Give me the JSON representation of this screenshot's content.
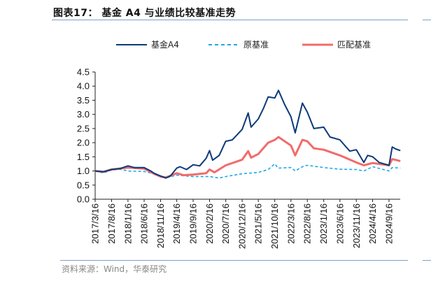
{
  "title": "图表17：  基金 A4 与业绩比较基准走势",
  "source": "资料来源：Wind，华泰研究",
  "chart_data": {
    "type": "line",
    "title": "",
    "xlabel": "",
    "ylabel": "",
    "ylim": [
      0,
      4.5
    ],
    "yticks": [
      "0.0",
      "0.5",
      "1.0",
      "1.5",
      "2.0",
      "2.5",
      "3.0",
      "3.5",
      "4.0",
      "4.5"
    ],
    "xticks": [
      "2017/3/16",
      "2017/8/16",
      "2018/1/16",
      "2018/6/16",
      "2018/11/16",
      "2019/4/16",
      "2019/9/16",
      "2020/2/16",
      "2020/7/16",
      "2020/12/16",
      "2021/5/16",
      "2021/10/16",
      "2022/3/16",
      "2022/8/16",
      "2023/1/16",
      "2023/6/16",
      "2023/11/16",
      "2024/4/16",
      "2024/9/16"
    ],
    "xlim": [
      "2017/3/16",
      "2024/12/31"
    ],
    "grid": false,
    "legend_position": "top",
    "series": [
      {
        "name": "基金A4",
        "color": "#0b3a7a",
        "style": "solid",
        "points": [
          [
            "2017/3/16",
            1.0
          ],
          [
            "2017/6/1",
            0.97
          ],
          [
            "2017/8/16",
            1.05
          ],
          [
            "2017/11/1",
            1.08
          ],
          [
            "2018/1/16",
            1.18
          ],
          [
            "2018/3/16",
            1.12
          ],
          [
            "2018/6/16",
            1.12
          ],
          [
            "2018/8/16",
            1.0
          ],
          [
            "2018/9/16",
            0.92
          ],
          [
            "2018/11/16",
            0.82
          ],
          [
            "2019/1/4",
            0.75
          ],
          [
            "2019/2/16",
            0.82
          ],
          [
            "2019/4/16",
            1.1
          ],
          [
            "2019/5/16",
            1.15
          ],
          [
            "2019/7/16",
            1.05
          ],
          [
            "2019/9/16",
            1.22
          ],
          [
            "2019/11/16",
            1.18
          ],
          [
            "2020/1/16",
            1.45
          ],
          [
            "2020/2/16",
            1.72
          ],
          [
            "2020/3/16",
            1.38
          ],
          [
            "2020/5/16",
            1.55
          ],
          [
            "2020/7/16",
            2.05
          ],
          [
            "2020/9/16",
            2.1
          ],
          [
            "2020/12/16",
            2.47
          ],
          [
            "2021/2/10",
            3.05
          ],
          [
            "2021/3/10",
            2.55
          ],
          [
            "2021/5/16",
            2.84
          ],
          [
            "2021/7/1",
            3.2
          ],
          [
            "2021/8/16",
            3.62
          ],
          [
            "2021/10/16",
            3.58
          ],
          [
            "2021/11/20",
            3.85
          ],
          [
            "2022/1/16",
            3.35
          ],
          [
            "2022/3/16",
            2.92
          ],
          [
            "2022/4/25",
            2.35
          ],
          [
            "2022/7/1",
            3.4
          ],
          [
            "2022/8/16",
            3.08
          ],
          [
            "2022/10/16",
            2.5
          ],
          [
            "2023/1/16",
            2.55
          ],
          [
            "2023/3/16",
            2.2
          ],
          [
            "2023/6/16",
            2.1
          ],
          [
            "2023/9/16",
            1.7
          ],
          [
            "2023/11/16",
            1.75
          ],
          [
            "2024/1/25",
            1.3
          ],
          [
            "2024/3/1",
            1.55
          ],
          [
            "2024/4/16",
            1.5
          ],
          [
            "2024/6/16",
            1.3
          ],
          [
            "2024/9/16",
            1.2
          ],
          [
            "2024/10/16",
            1.85
          ],
          [
            "2024/11/16",
            1.78
          ],
          [
            "2024/12/31",
            1.72
          ]
        ]
      },
      {
        "name": "原基准",
        "color": "#1fa8e8",
        "style": "dashed",
        "points": [
          [
            "2017/3/16",
            1.0
          ],
          [
            "2017/6/1",
            0.93
          ],
          [
            "2017/8/16",
            1.03
          ],
          [
            "2017/11/1",
            1.06
          ],
          [
            "2018/1/16",
            1.0
          ],
          [
            "2018/6/16",
            0.98
          ],
          [
            "2018/9/16",
            0.9
          ],
          [
            "2018/11/16",
            0.8
          ],
          [
            "2019/1/4",
            0.76
          ],
          [
            "2019/4/16",
            0.85
          ],
          [
            "2019/9/16",
            0.8
          ],
          [
            "2020/2/16",
            0.8
          ],
          [
            "2020/5/16",
            0.75
          ],
          [
            "2020/7/16",
            0.8
          ],
          [
            "2020/12/16",
            0.9
          ],
          [
            "2021/5/16",
            0.95
          ],
          [
            "2021/8/16",
            1.05
          ],
          [
            "2021/10/16",
            1.25
          ],
          [
            "2021/11/16",
            1.1
          ],
          [
            "2022/3/16",
            1.12
          ],
          [
            "2022/4/25",
            1.0
          ],
          [
            "2022/7/16",
            1.18
          ],
          [
            "2022/8/16",
            1.2
          ],
          [
            "2023/1/16",
            1.12
          ],
          [
            "2023/6/16",
            1.06
          ],
          [
            "2023/11/16",
            1.05
          ],
          [
            "2024/1/25",
            1.0
          ],
          [
            "2024/4/16",
            1.15
          ],
          [
            "2024/9/16",
            1.0
          ],
          [
            "2024/10/16",
            1.12
          ],
          [
            "2024/12/31",
            1.1
          ]
        ]
      },
      {
        "name": "匹配基准",
        "color": "#f26b6b",
        "style": "solid-thick",
        "points": [
          [
            "2017/3/16",
            1.0
          ],
          [
            "2017/6/1",
            0.97
          ],
          [
            "2017/8/16",
            1.05
          ],
          [
            "2018/1/16",
            1.12
          ],
          [
            "2018/6/16",
            1.08
          ],
          [
            "2018/9/16",
            0.9
          ],
          [
            "2018/11/16",
            0.8
          ],
          [
            "2019/1/4",
            0.77
          ],
          [
            "2019/4/16",
            0.92
          ],
          [
            "2019/6/16",
            0.85
          ],
          [
            "2019/9/16",
            0.87
          ],
          [
            "2020/1/16",
            0.92
          ],
          [
            "2020/2/16",
            1.05
          ],
          [
            "2020/4/1",
            0.95
          ],
          [
            "2020/7/16",
            1.2
          ],
          [
            "2020/12/16",
            1.4
          ],
          [
            "2021/2/10",
            1.7
          ],
          [
            "2021/3/10",
            1.47
          ],
          [
            "2021/5/16",
            1.6
          ],
          [
            "2021/8/16",
            2.0
          ],
          [
            "2021/10/16",
            2.1
          ],
          [
            "2021/11/20",
            2.2
          ],
          [
            "2022/3/16",
            1.9
          ],
          [
            "2022/4/25",
            1.55
          ],
          [
            "2022/7/1",
            2.1
          ],
          [
            "2022/8/16",
            2.05
          ],
          [
            "2022/10/16",
            1.8
          ],
          [
            "2023/1/16",
            1.75
          ],
          [
            "2023/6/16",
            1.55
          ],
          [
            "2023/11/16",
            1.3
          ],
          [
            "2024/1/25",
            1.2
          ],
          [
            "2024/4/16",
            1.28
          ],
          [
            "2024/9/16",
            1.2
          ],
          [
            "2024/10/16",
            1.42
          ],
          [
            "2024/12/31",
            1.35
          ]
        ]
      }
    ]
  }
}
